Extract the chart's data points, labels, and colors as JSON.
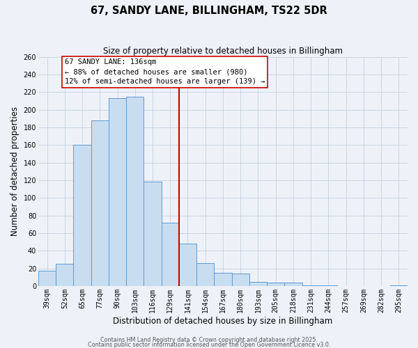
{
  "title": "67, SANDY LANE, BILLINGHAM, TS22 5DR",
  "subtitle": "Size of property relative to detached houses in Billingham",
  "xlabel": "Distribution of detached houses by size in Billingham",
  "ylabel": "Number of detached properties",
  "bar_labels": [
    "39sqm",
    "52sqm",
    "65sqm",
    "77sqm",
    "90sqm",
    "103sqm",
    "116sqm",
    "129sqm",
    "141sqm",
    "154sqm",
    "167sqm",
    "180sqm",
    "193sqm",
    "205sqm",
    "218sqm",
    "231sqm",
    "244sqm",
    "257sqm",
    "269sqm",
    "282sqm",
    "295sqm"
  ],
  "bar_values": [
    17,
    25,
    160,
    188,
    213,
    215,
    118,
    72,
    48,
    26,
    15,
    14,
    5,
    4,
    4,
    1,
    1,
    0,
    0,
    0,
    1
  ],
  "bar_color": "#c9ddf0",
  "bar_edge_color": "#5b9bd5",
  "vline_color": "#cc0000",
  "annotation_title": "67 SANDY LANE: 136sqm",
  "annotation_line1": "← 88% of detached houses are smaller (980)",
  "annotation_line2": "12% of semi-detached houses are larger (139) →",
  "annotation_box_color": "#ffffff",
  "annotation_box_edge": "#cc0000",
  "ylim": [
    0,
    260
  ],
  "yticks": [
    0,
    20,
    40,
    60,
    80,
    100,
    120,
    140,
    160,
    180,
    200,
    220,
    240,
    260
  ],
  "footer1": "Contains HM Land Registry data © Crown copyright and database right 2025.",
  "footer2": "Contains public sector information licensed under the Open Government Licence v3.0.",
  "bg_color": "#eef2f8",
  "grid_color": "#c5d0e0",
  "title_fontsize": 10.5,
  "subtitle_fontsize": 8.5,
  "xlabel_fontsize": 8.5,
  "ylabel_fontsize": 8.5,
  "tick_fontsize": 7.0,
  "annotation_fontsize": 7.5,
  "footer_fontsize": 5.8
}
